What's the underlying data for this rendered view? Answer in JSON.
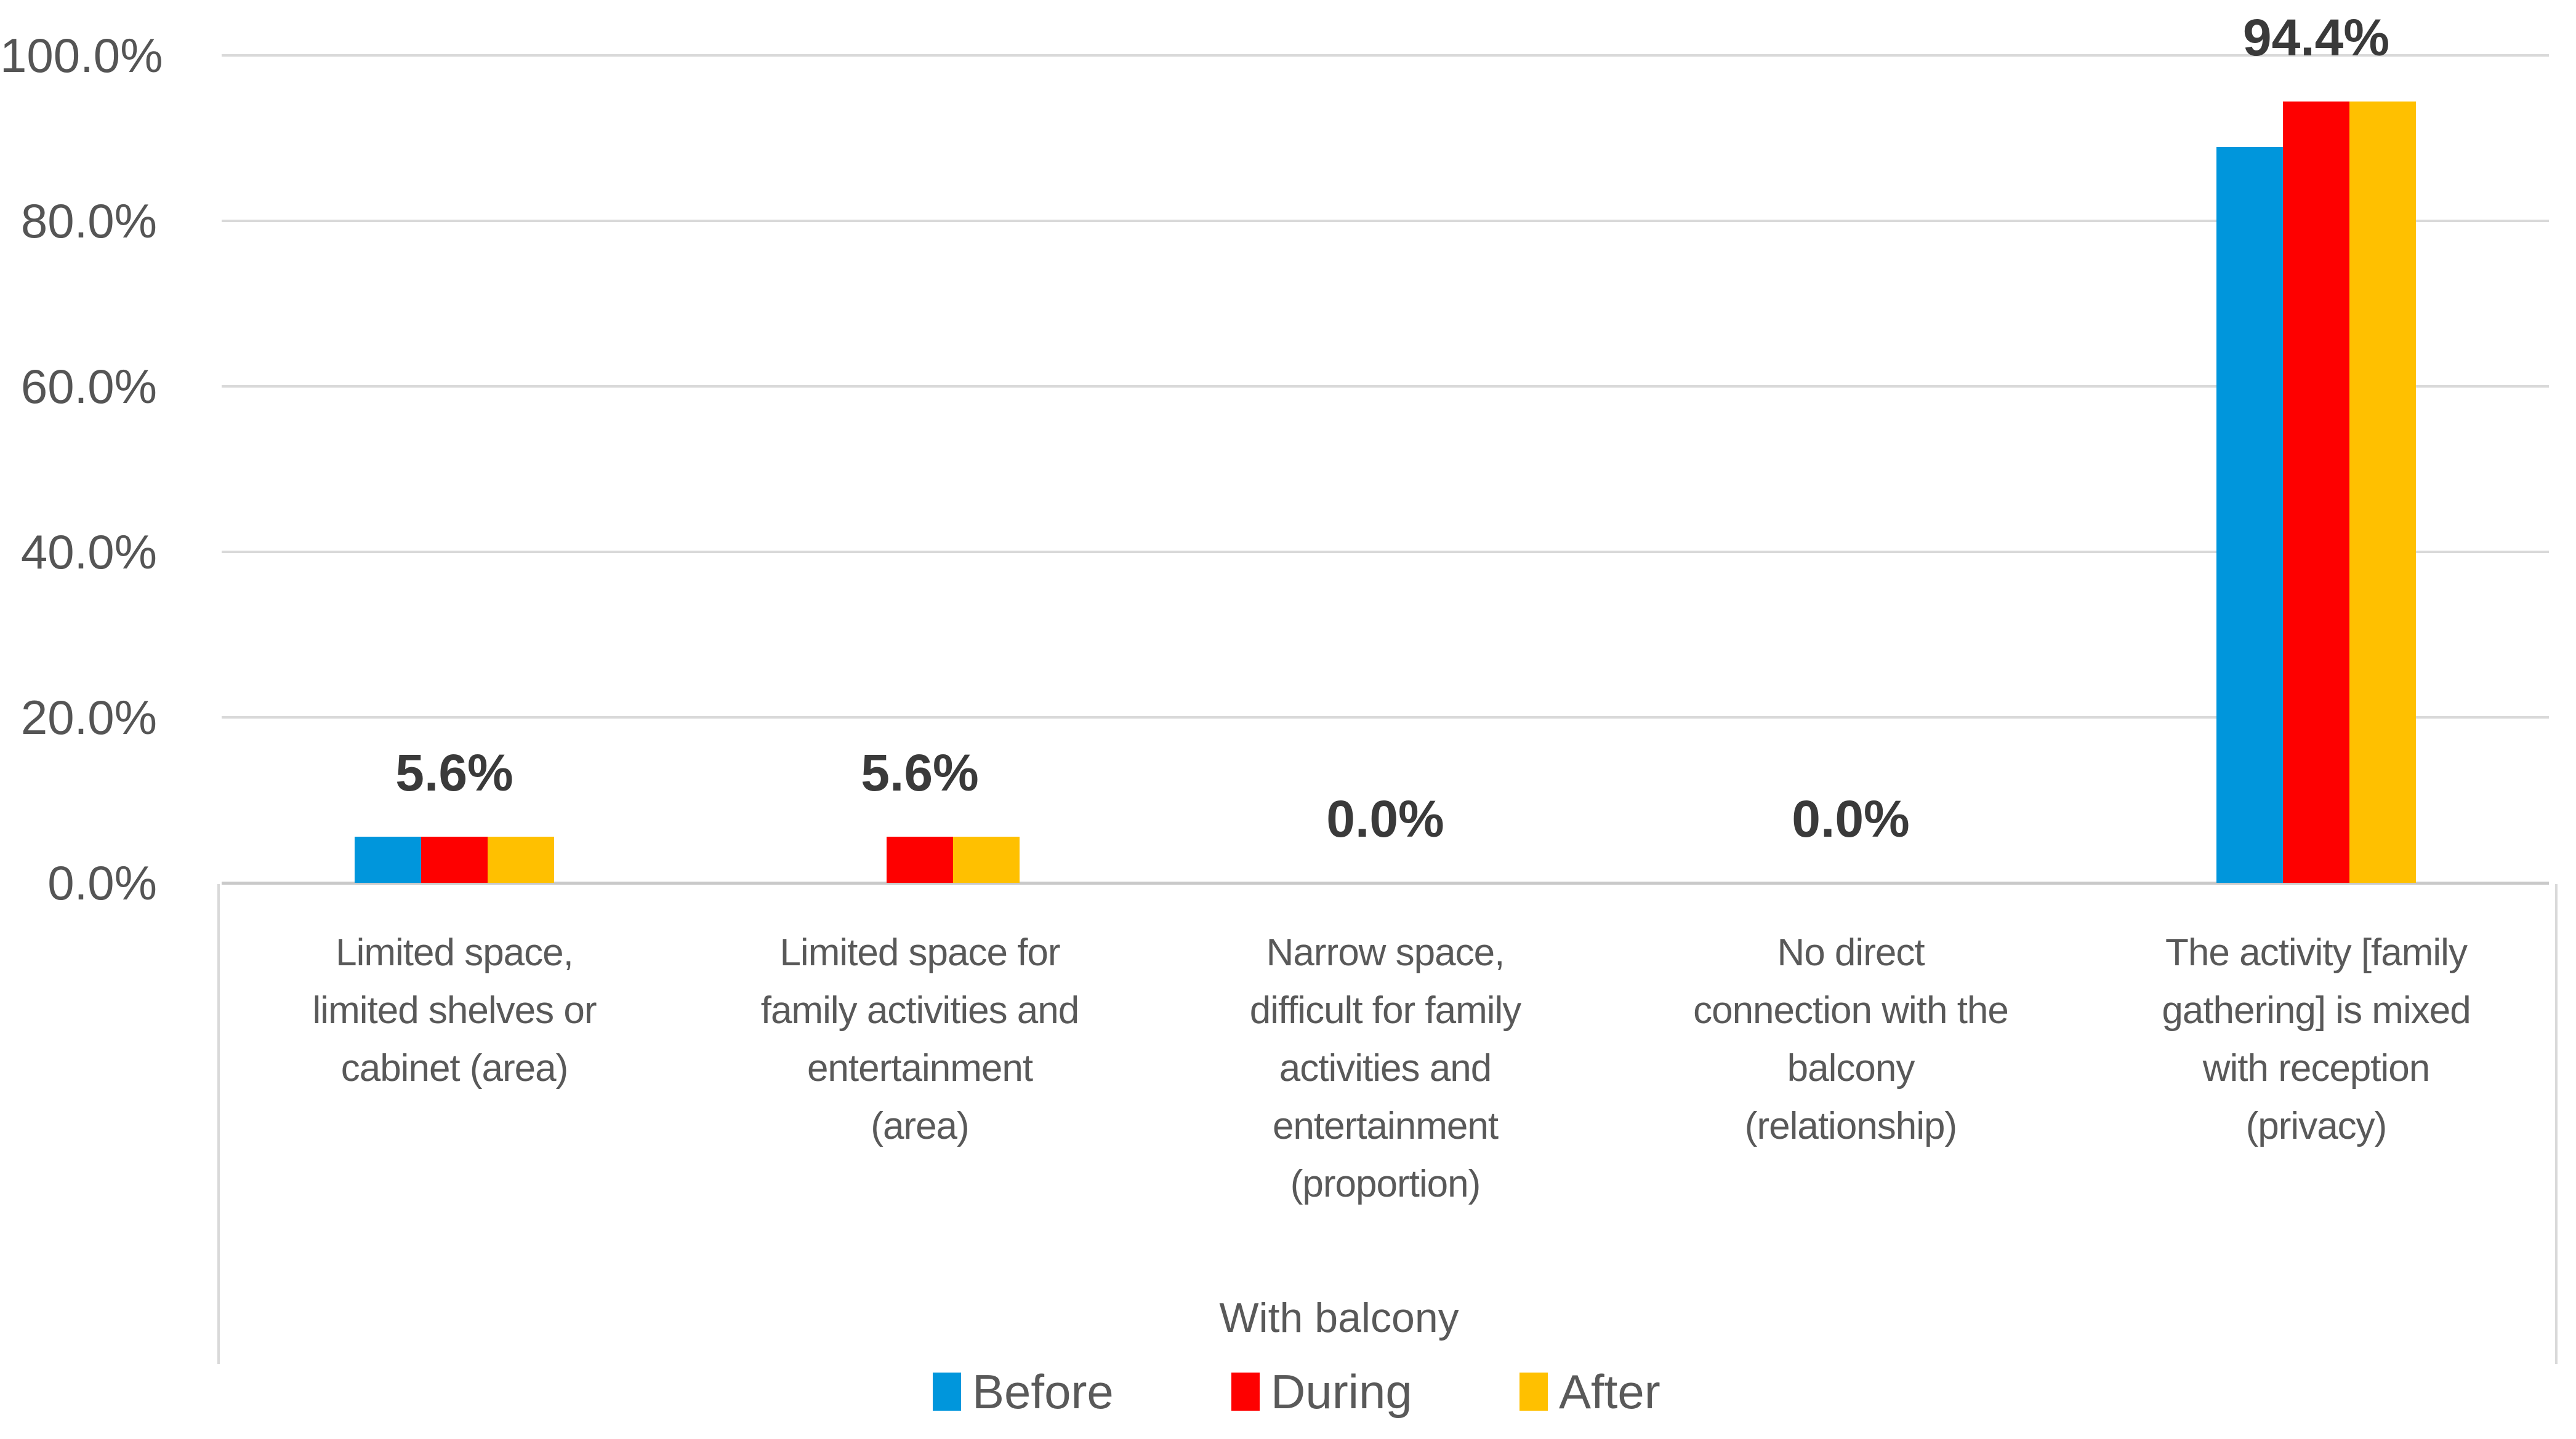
{
  "chart_data": {
    "type": "bar",
    "title": "",
    "xlabel": "",
    "ylabel": "",
    "ylim": [
      0,
      100
    ],
    "grid": "horizontal",
    "legend_position": "bottom",
    "group_label": "With balcony",
    "y_ticks": [
      "100.0%",
      "80.0%",
      "60.0%",
      "40.0%",
      "20.0%",
      "0.0%"
    ],
    "y_tick_values": [
      100,
      80,
      60,
      40,
      20,
      0
    ],
    "categories": [
      "Limited space,\nlimited shelves or\ncabinet (area)",
      "Limited space for\nfamily activities and\nentertainment\n(area)",
      "Narrow space,\ndifficult for family\nactivities and\nentertainment\n(proportion)",
      "No direct\nconnection with the\nbalcony\n(relationship)",
      "The activity [family\ngathering] is mixed\nwith reception\n(privacy)"
    ],
    "series": [
      {
        "name": "Before",
        "color": "#0096DC",
        "values": [
          5.6,
          0.0,
          0.0,
          0.0,
          88.9
        ]
      },
      {
        "name": "During",
        "color": "#FE0000",
        "values": [
          5.6,
          5.6,
          0.0,
          0.0,
          94.4
        ]
      },
      {
        "name": "After",
        "color": "#FFC000",
        "values": [
          5.6,
          5.6,
          0.0,
          0.0,
          94.4
        ]
      }
    ],
    "data_labels": [
      "5.6%",
      "5.6%",
      "0.0%",
      "0.0%",
      "94.4%"
    ],
    "colors": {
      "gridline": "#D9D9D9",
      "axis_line": "#C9C9C9",
      "tick_text": "#555555",
      "category_text": "#595959",
      "data_label_text": "#3A3A3A"
    }
  }
}
